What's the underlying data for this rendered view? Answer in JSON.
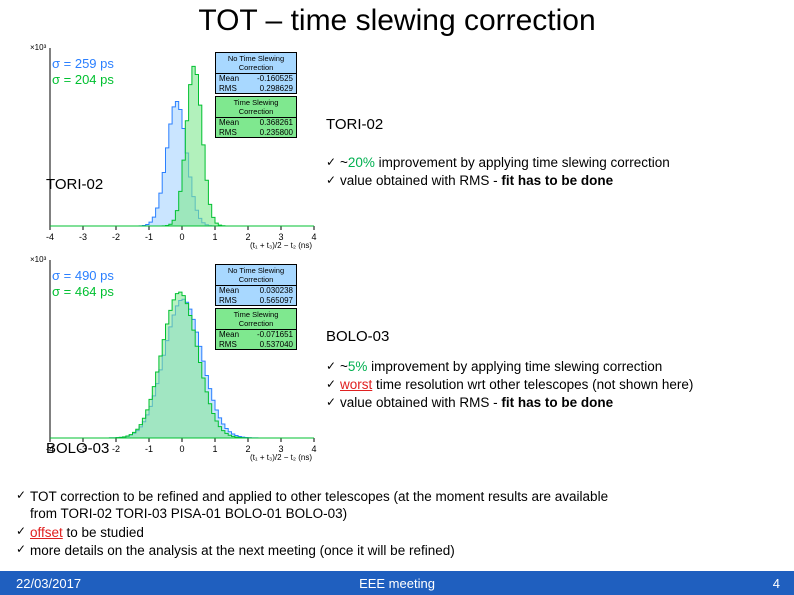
{
  "title": "TOT – time slewing correction",
  "footer": {
    "date": "22/03/2017",
    "meeting": "EEE meeting",
    "page": "4"
  },
  "chart1": {
    "label": "TORI-02",
    "side_label": "TORI-02",
    "sigma1": "σ = 259 ps",
    "sigma2": "σ = 204 ps",
    "sigma1_color": "#2a7fff",
    "sigma2_color": "#00c030",
    "axis_color": "#000000",
    "grid_color": "#dddddd",
    "bg": "#ffffff",
    "xlim": [
      -4,
      4
    ],
    "xticks": [
      -4,
      -3,
      -2,
      -1,
      0,
      1,
      2,
      3,
      4
    ],
    "xlabel": "(t₁ + t₃)/2 − t₂ (ns)",
    "ylabel_exp": "×10³",
    "ymax": 1.0,
    "series": [
      {
        "name": "no-correction",
        "color": "#2a7fff",
        "fill": "#9fd0ff",
        "opacity": 0.55,
        "mu": -0.16,
        "sigma": 0.3,
        "amp": 0.7
      },
      {
        "name": "slewing-correction",
        "color": "#00c030",
        "fill": "#7fe88f",
        "opacity": 0.6,
        "mu": 0.37,
        "sigma": 0.24,
        "amp": 0.9
      }
    ],
    "stat_boxes": [
      {
        "title": "No Time Slewing Correction",
        "bg": "#a8d8ff",
        "mean": "-0.160525",
        "rms": "0.298629"
      },
      {
        "title": "Time Slewing Correction",
        "bg": "#7fe88f",
        "mean": "0.368261",
        "rms": "0.235800"
      }
    ],
    "bullets": [
      {
        "pre": "~",
        "pct": "20%",
        "pct_color": "green",
        "text": " improvement by applying time slewing correction"
      },
      {
        "text": "value obtained with RMS - ",
        "bold_tail": "fit has to be done"
      }
    ]
  },
  "chart2": {
    "label": "BOLO-03",
    "side_label": "BOLO-03",
    "sigma1": "σ = 490 ps",
    "sigma2": "σ = 464 ps",
    "sigma1_color": "#2a7fff",
    "sigma2_color": "#00c030",
    "axis_color": "#000000",
    "bg": "#ffffff",
    "xlim": [
      -4,
      4
    ],
    "xticks": [
      -4,
      -3,
      -2,
      -1,
      0,
      1,
      2,
      3,
      4
    ],
    "xlabel": "(t₁ + t₃)/2 − t₂ (ns)",
    "ylabel_exp": "×10³",
    "ymax": 1.0,
    "series": [
      {
        "name": "no-correction",
        "color": "#2a7fff",
        "fill": "#9fd0ff",
        "opacity": 0.55,
        "mu": 0.03,
        "sigma": 0.57,
        "amp": 0.78
      },
      {
        "name": "slewing-correction",
        "color": "#00c030",
        "fill": "#7fe88f",
        "opacity": 0.55,
        "mu": -0.07,
        "sigma": 0.54,
        "amp": 0.82
      }
    ],
    "stat_boxes": [
      {
        "title": "No Time Slewing Correction",
        "bg": "#a8d8ff",
        "mean": "0.030238",
        "rms": "0.565097"
      },
      {
        "title": "Time Slewing Correction",
        "bg": "#7fe88f",
        "mean": "-0.071651",
        "rms": "0.537040"
      }
    ],
    "bullets": [
      {
        "pre": "~",
        "pct": "5%",
        "pct_color": "green",
        "text": " improvement by applying time slewing correction"
      },
      {
        "red_word": "worst",
        "text": " time resolution wrt other telescopes (not shown here)"
      },
      {
        "text": "value obtained with RMS - ",
        "bold_tail": "fit has to be done"
      }
    ]
  },
  "bottom": {
    "b1a": "TOT correction to be refined and applied to other telescopes (at the moment results are available",
    "b1b": "from TORI-02 TORI-03 PISA-01 BOLO-01 BOLO-03)",
    "b2_red": "offset",
    "b2_tail": " to be studied",
    "b3": "more details on the analysis at the next meeting (once it will be refined)"
  }
}
